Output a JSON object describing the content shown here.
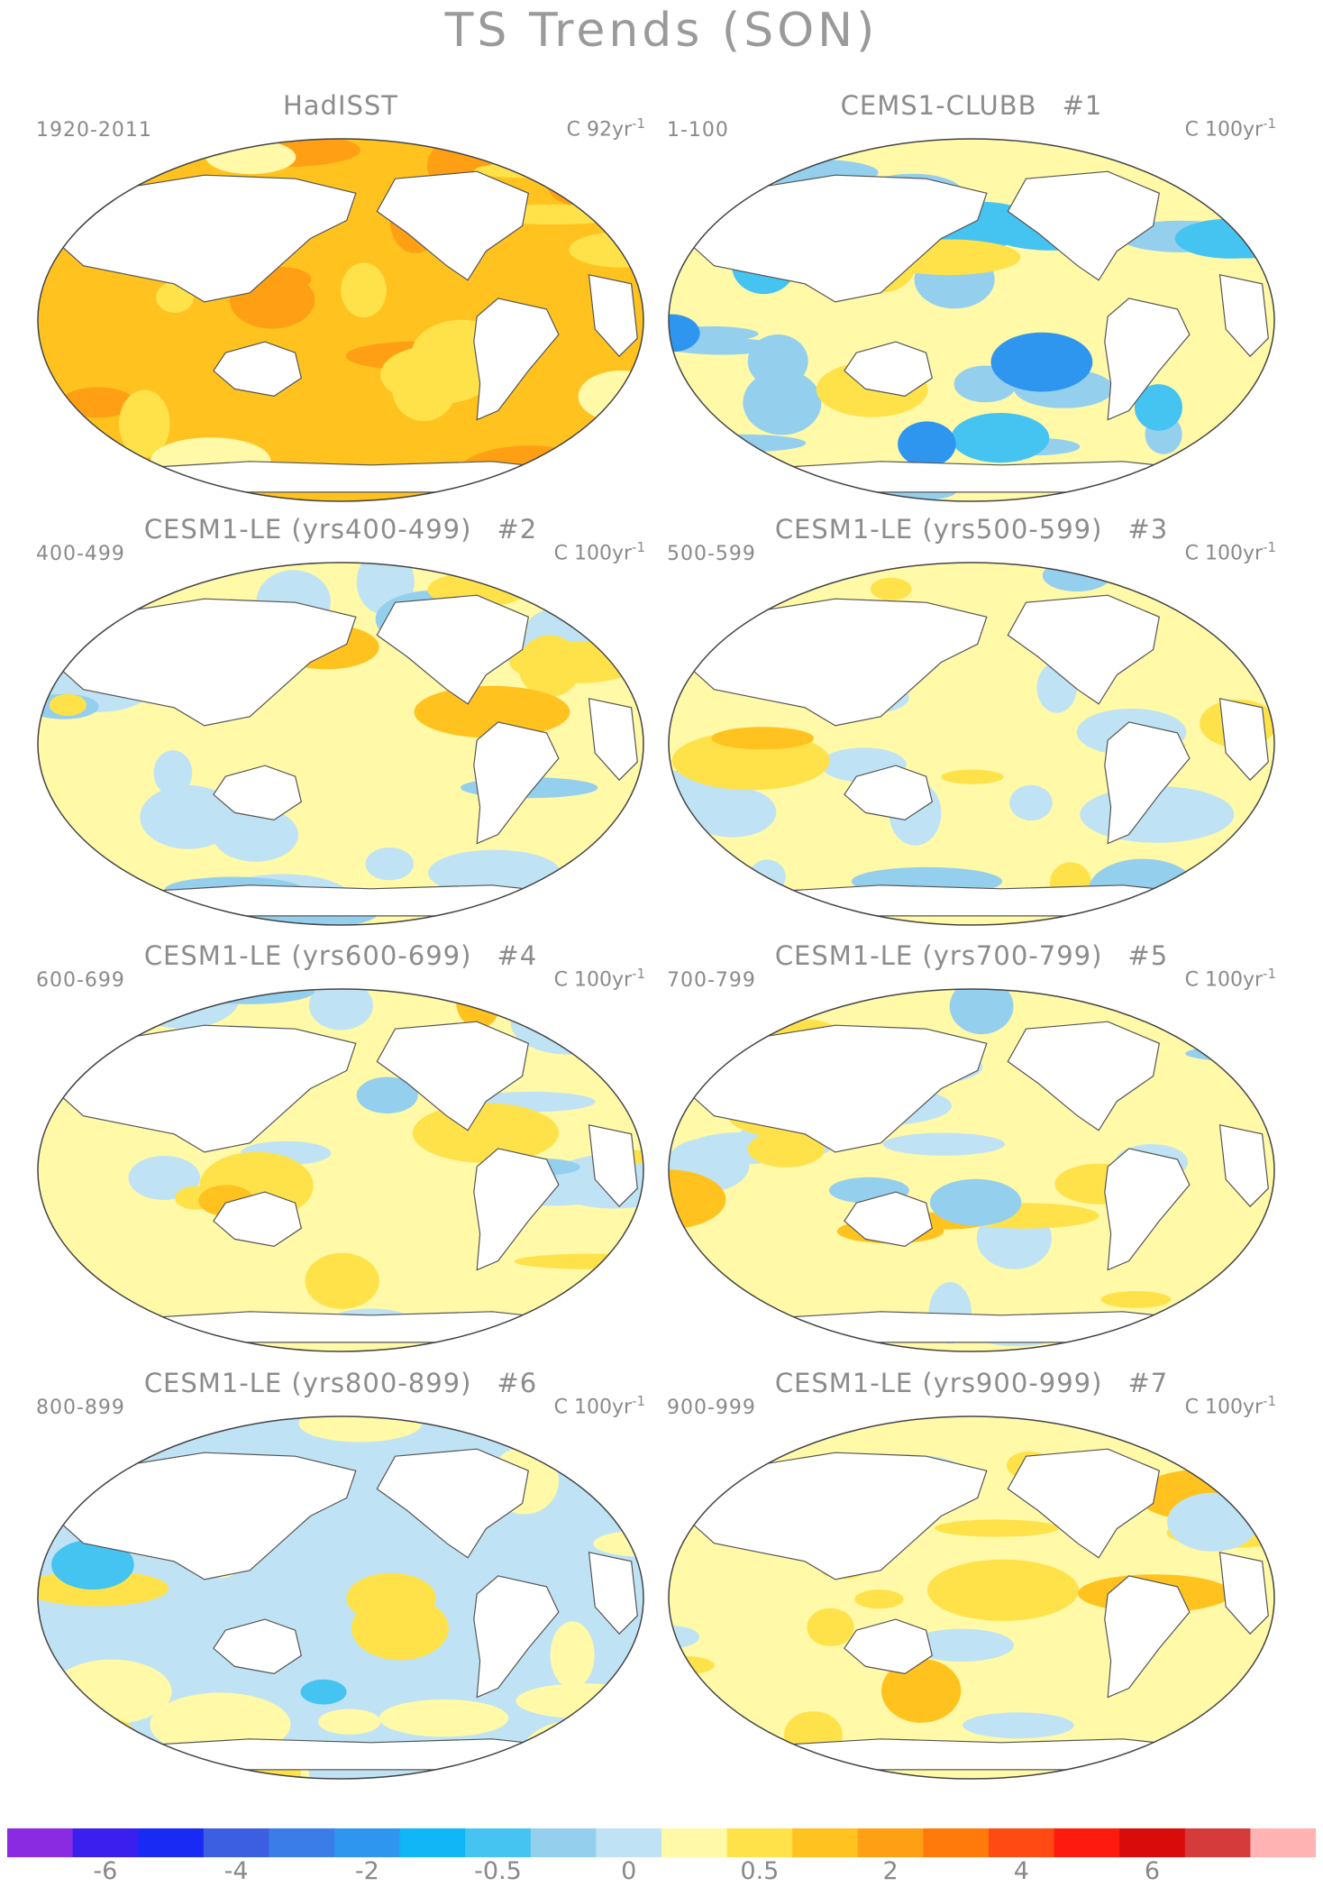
{
  "title": "TS Trends (SON)",
  "panels": [
    {
      "title": "HadISST",
      "num": "",
      "period": "1920-2011",
      "units_c": "C",
      "units_rate": "92yr",
      "units_exp": "-1",
      "regime": "hadisst"
    },
    {
      "title": "CEMS1-CLUBB",
      "num": "#1",
      "period": "1-100",
      "units_c": "C",
      "units_rate": "100yr",
      "units_exp": "-1",
      "regime": "cool"
    },
    {
      "title": "CESM1-LE (yrs400-499)",
      "num": "#2",
      "period": "400-499",
      "units_c": "C",
      "units_rate": "100yr",
      "units_exp": "-1",
      "regime": "mixed"
    },
    {
      "title": "CESM1-LE (yrs500-599)",
      "num": "#3",
      "period": "500-599",
      "units_c": "C",
      "units_rate": "100yr",
      "units_exp": "-1",
      "regime": "mixed2"
    },
    {
      "title": "CESM1-LE (yrs600-699)",
      "num": "#4",
      "period": "600-699",
      "units_c": "C",
      "units_rate": "100yr",
      "units_exp": "-1",
      "regime": "mixed"
    },
    {
      "title": "CESM1-LE (yrs700-799)",
      "num": "#5",
      "period": "700-799",
      "units_c": "C",
      "units_rate": "100yr",
      "units_exp": "-1",
      "regime": "mixed2"
    },
    {
      "title": "CESM1-LE (yrs800-899)",
      "num": "#6",
      "period": "800-899",
      "units_c": "C",
      "units_rate": "100yr",
      "units_exp": "-1",
      "regime": "cool2"
    },
    {
      "title": "CESM1-LE (yrs900-999)",
      "num": "#7",
      "period": "900-999",
      "units_c": "C",
      "units_rate": "100yr",
      "units_exp": "-1",
      "regime": "warm"
    }
  ],
  "colorbar": {
    "colors": [
      "#8a2be2",
      "#3a1fef",
      "#1a2af5",
      "#3b5fe0",
      "#3b7de8",
      "#2f96f0",
      "#10b6f5",
      "#45c4f2",
      "#95cfee",
      "#bfe3f5",
      "#fff9a8",
      "#ffe24a",
      "#ffc21f",
      "#ff9f14",
      "#ff7a0a",
      "#ff4a14",
      "#ff1a0f",
      "#d90b0b",
      "#d63b3b",
      "#ffb3b3"
    ],
    "labels": [
      "-6",
      "-4",
      "-2",
      "-0.5",
      "0",
      "0.5",
      "2",
      "4",
      "6"
    ],
    "label_boundaries": [
      1,
      3,
      5,
      7,
      9,
      11,
      13,
      15,
      17
    ]
  }
}
